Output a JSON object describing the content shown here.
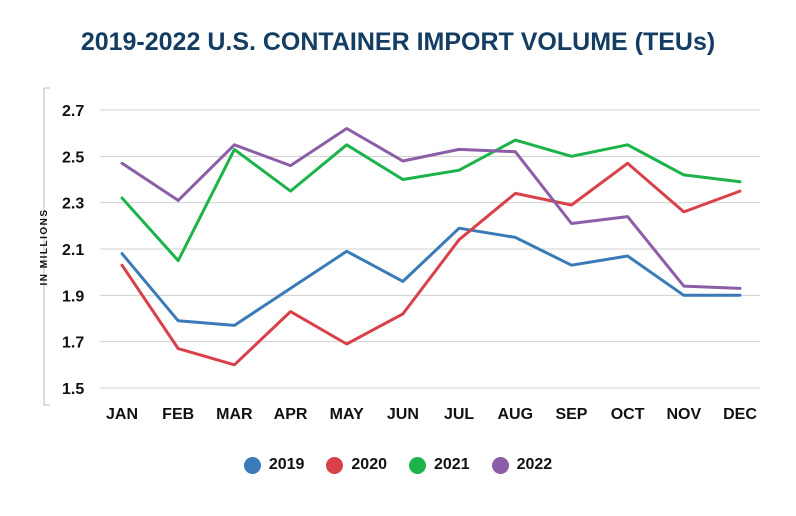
{
  "chart_data": {
    "type": "line",
    "title": "2019-2022 U.S. CONTAINER IMPORT VOLUME (TEUs)",
    "ylabel": "IN MILLIONS",
    "xlabel": "",
    "categories": [
      "JAN",
      "FEB",
      "MAR",
      "APR",
      "MAY",
      "JUN",
      "JUL",
      "AUG",
      "SEP",
      "OCT",
      "NOV",
      "DEC"
    ],
    "ylim": [
      1.5,
      2.7
    ],
    "yticks": [
      "2.7",
      "2.5",
      "2.3",
      "2.1",
      "1.9",
      "1.7",
      "1.5"
    ],
    "grid": true,
    "legend": "bottom",
    "series": [
      {
        "name": "2019",
        "color": "#3a7bb7",
        "values": [
          2.08,
          1.79,
          1.77,
          1.93,
          2.09,
          1.96,
          2.19,
          2.15,
          2.03,
          2.07,
          1.9,
          1.9
        ]
      },
      {
        "name": "2020",
        "color": "#d8414a",
        "values": [
          2.03,
          1.67,
          1.6,
          1.83,
          1.69,
          1.82,
          2.14,
          2.34,
          2.29,
          2.47,
          2.26,
          2.35
        ]
      },
      {
        "name": "2021",
        "color": "#1cb34a",
        "values": [
          2.32,
          2.05,
          2.53,
          2.35,
          2.55,
          2.4,
          2.44,
          2.57,
          2.5,
          2.55,
          2.42,
          2.39
        ]
      },
      {
        "name": "2022",
        "color": "#8c5ea8",
        "values": [
          2.47,
          2.31,
          2.55,
          2.46,
          2.62,
          2.48,
          2.53,
          2.52,
          2.21,
          2.24,
          1.94,
          1.93
        ]
      }
    ]
  }
}
